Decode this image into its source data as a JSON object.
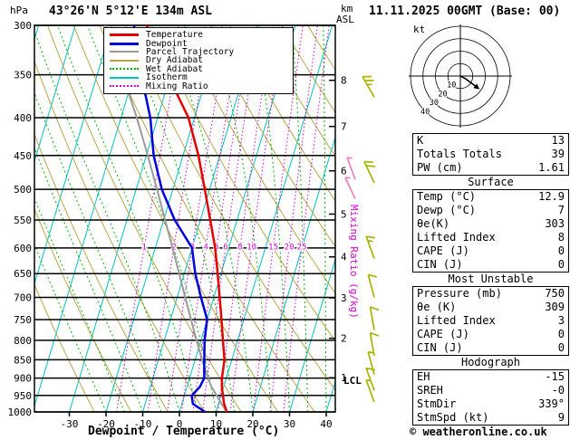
{
  "header": {
    "station": "43°26'N 5°12'E 134m ASL",
    "datetime": "11.11.2025 00GMT (Base: 00)"
  },
  "labels": {
    "pressure_unit": "hPa",
    "km": "km",
    "asl": "ASL",
    "kt": "kt",
    "mixing_ratio_axis": "Mixing Ratio (g/kg)",
    "lcl": "LCL",
    "xaxis": "Dewpoint / Temperature (°C)",
    "copyright": "© weatheronline.co.uk"
  },
  "legend": {
    "items": [
      {
        "label": "Temperature",
        "color": "#e60000",
        "width": 3,
        "dash": false
      },
      {
        "label": "Dewpoint",
        "color": "#0000dd",
        "width": 3,
        "dash": false
      },
      {
        "label": "Parcel Trajectory",
        "color": "#9a9a9a",
        "width": 2,
        "dash": false
      },
      {
        "label": "Dry Adiabat",
        "color": "#b8a64a",
        "width": 2,
        "dash": false
      },
      {
        "label": "Wet Adiabat",
        "color": "#00b400",
        "width": 2,
        "dash": true
      },
      {
        "label": "Isotherm",
        "color": "#00c3c3",
        "width": 2,
        "dash": false
      },
      {
        "label": "Mixing Ratio",
        "color": "#d800d8",
        "width": 2,
        "dash": true
      }
    ]
  },
  "chart_data": {
    "type": "line",
    "variant": "skew-t-log-p-sounding",
    "title": "43°26'N 5°12'E 134m ASL",
    "x_axis": {
      "label": "Dewpoint / Temperature (°C)",
      "unit": "°C",
      "ticks": [
        -30,
        -20,
        -10,
        0,
        10,
        20,
        30,
        40
      ],
      "min": -40,
      "max": 43
    },
    "y_axis": {
      "label": "hPa",
      "scale": "log",
      "ticks": [
        300,
        350,
        400,
        450,
        500,
        550,
        600,
        650,
        700,
        750,
        800,
        850,
        900,
        950,
        1000
      ]
    },
    "height_axis": {
      "label": "km ASL",
      "ticks": [
        {
          "km": 1,
          "hpa": 899
        },
        {
          "km": 2,
          "hpa": 795
        },
        {
          "km": 3,
          "hpa": 701
        },
        {
          "km": 4,
          "hpa": 617
        },
        {
          "km": 5,
          "hpa": 540
        },
        {
          "km": 6,
          "hpa": 472
        },
        {
          "km": 7,
          "hpa": 411
        },
        {
          "km": 8,
          "hpa": 356
        }
      ]
    },
    "isotherm_step_c": 10,
    "dry_adiabats_theta_k": [
      250,
      260,
      270,
      280,
      290,
      300,
      310,
      320,
      330,
      340,
      350,
      360,
      370,
      380,
      390,
      400,
      410,
      420,
      430,
      440,
      450
    ],
    "wet_adiabat_surface_temps_c": [
      -20,
      -15,
      -10,
      -5,
      0,
      5,
      10,
      15,
      20,
      25,
      30,
      35,
      40
    ],
    "mixing_ratio_lines_gkg": [
      1,
      2,
      3,
      4,
      5,
      6,
      8,
      10,
      15,
      20,
      25
    ],
    "lcl_hpa": 920,
    "sounding": {
      "pressure_hpa": [
        1000,
        975,
        950,
        925,
        900,
        850,
        800,
        750,
        700,
        650,
        600,
        550,
        500,
        450,
        400,
        350,
        300
      ],
      "temperature_c": [
        12.9,
        11.5,
        10.5,
        9.5,
        8.8,
        8.0,
        6.0,
        3.9,
        1.6,
        -0.9,
        -3.7,
        -7.3,
        -11.3,
        -15.8,
        -21.6,
        -30.8,
        -40.6
      ],
      "dewpoint_c": [
        7,
        3,
        2,
        3.5,
        4,
        2.5,
        1,
        0,
        -3.5,
        -7,
        -10,
        -17,
        -23,
        -28,
        -32,
        -38,
        -44
      ],
      "parcel_c": [
        12.9,
        10.8,
        8.8,
        6.7,
        5.0,
        1.9,
        -1.2,
        -4.4,
        -7.8,
        -11.4,
        -15.3,
        -19.6,
        -24.3,
        -29.6,
        -35.7,
        -43.0,
        -51.8
      ]
    },
    "wind_barbs": {
      "unit": "kt",
      "levels": [
        {
          "p": 375,
          "dir": 330,
          "spd": 25
        },
        {
          "p": 490,
          "dir": 335,
          "spd": 20
        },
        {
          "p": 620,
          "dir": 340,
          "spd": 15
        },
        {
          "p": 700,
          "dir": 345,
          "spd": 10
        },
        {
          "p": 775,
          "dir": 350,
          "spd": 10
        },
        {
          "p": 840,
          "dir": 350,
          "spd": 10
        },
        {
          "p": 890,
          "dir": 345,
          "spd": 5
        },
        {
          "p": 935,
          "dir": 340,
          "spd": 10
        },
        {
          "p": 970,
          "dir": 340,
          "spd": 5
        }
      ],
      "pink_levels": [
        {
          "p": 485,
          "dir": 340,
          "spd": 5
        },
        {
          "p": 515,
          "dir": 335,
          "spd": 5
        }
      ]
    },
    "hodograph": {
      "unit": "kt",
      "rings_kt": [
        10,
        20,
        30,
        40
      ],
      "trace_uv_kt": [
        [
          0,
          0
        ],
        [
          4,
          -2
        ],
        [
          8,
          -5
        ],
        [
          12,
          -8
        ]
      ],
      "storm_dir_deg": 339,
      "storm_spd_kt": 9
    }
  },
  "indices": {
    "sections": [
      {
        "header": "",
        "rows": [
          [
            "K",
            "13"
          ],
          [
            "Totals Totals",
            "39"
          ],
          [
            "PW (cm)",
            "1.61"
          ]
        ]
      },
      {
        "header": "Surface",
        "rows": [
          [
            "Temp (°C)",
            "12.9"
          ],
          [
            "Dewp (°C)",
            "7"
          ],
          [
            "θe(K)",
            "303"
          ],
          [
            "Lifted Index",
            "8"
          ],
          [
            "CAPE (J)",
            "0"
          ],
          [
            "CIN (J)",
            "0"
          ]
        ]
      },
      {
        "header": "Most Unstable",
        "rows": [
          [
            "Pressure (mb)",
            "750"
          ],
          [
            "θe (K)",
            "309"
          ],
          [
            "Lifted Index",
            "3"
          ],
          [
            "CAPE (J)",
            "0"
          ],
          [
            "CIN (J)",
            "0"
          ]
        ]
      },
      {
        "header": "Hodograph",
        "rows": [
          [
            "EH",
            "-15"
          ],
          [
            "SREH",
            "-0"
          ],
          [
            "StmDir",
            "339°"
          ],
          [
            "StmSpd (kt)",
            "9"
          ]
        ]
      }
    ]
  }
}
